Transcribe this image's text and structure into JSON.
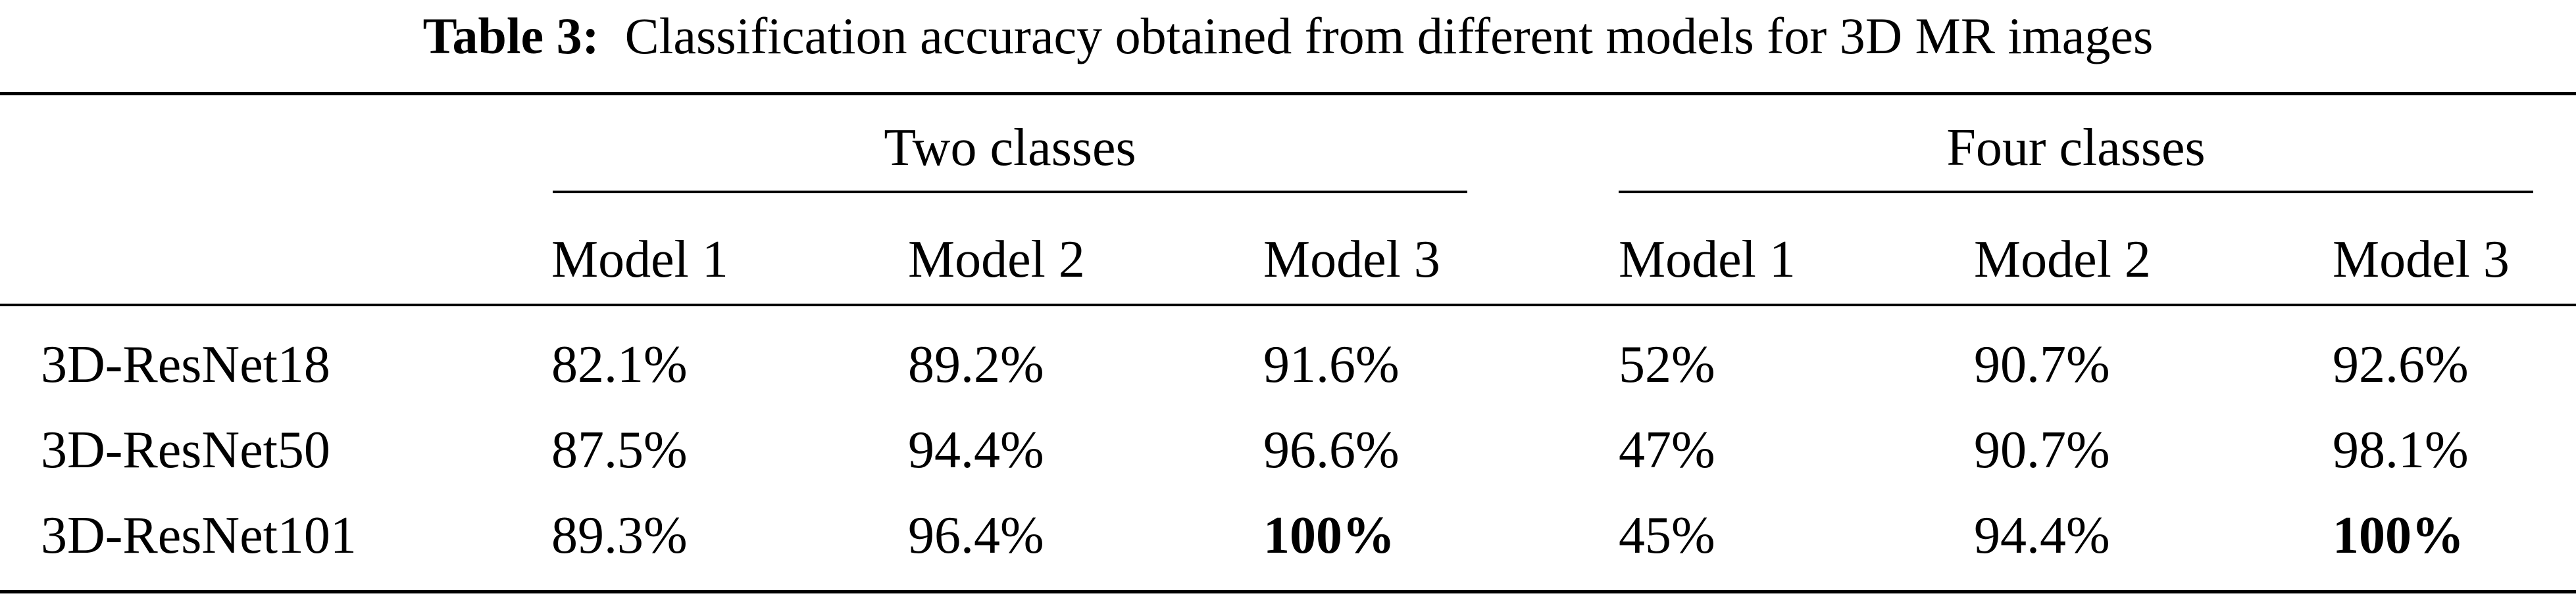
{
  "table": {
    "caption_label": "Table 3:",
    "caption_text": "Classification accuracy obtained from different models for 3D MR images",
    "groups": [
      "Two classes",
      "Four classes"
    ],
    "columns": [
      "Model 1",
      "Model 2",
      "Model 3",
      "Model 1",
      "Model 2",
      "Model 3"
    ],
    "rows": [
      {
        "label": "3D-ResNet18",
        "values": [
          "82.1%",
          "89.2%",
          "91.6%",
          "52%",
          "90.7%",
          "92.6%"
        ]
      },
      {
        "label": "3D-ResNet50",
        "values": [
          "87.5%",
          "94.4%",
          "96.6%",
          "47%",
          "90.7%",
          "98.1%"
        ]
      },
      {
        "label": "3D-ResNet101",
        "values": [
          "89.3%",
          "96.4%",
          "100%",
          "45%",
          "94.4%",
          "100%"
        ]
      }
    ],
    "bold_cells": [
      [
        2,
        2
      ],
      [
        2,
        5
      ]
    ]
  }
}
